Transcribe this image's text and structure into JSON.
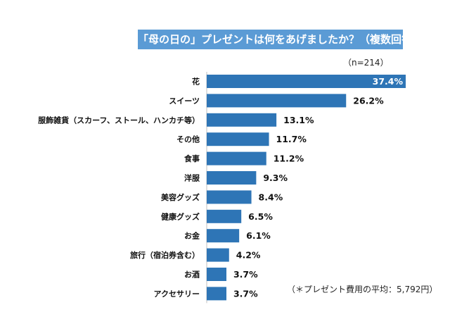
{
  "chart_data": {
    "type": "bar",
    "orientation": "horizontal",
    "title": "「母の日の」プレゼントは何をあげましたか？（複数回答)",
    "sample_size": "（n=214）",
    "unit": "%",
    "categories": [
      "花",
      "スイーツ",
      "服飾雑貨（スカーフ、ストール、ハンカチ等）",
      "その他",
      "食事",
      "洋服",
      "美容グッズ",
      "健康グッズ",
      "お金",
      "旅行（宿泊券含む）",
      "お酒",
      "アクセサリー"
    ],
    "values": [
      37.4,
      26.2,
      13.1,
      11.7,
      11.2,
      9.3,
      8.4,
      6.5,
      6.1,
      4.2,
      3.7,
      3.7
    ],
    "value_labels": [
      "37.4%",
      "26.2%",
      "13.1%",
      "11.7%",
      "11.2%",
      "9.3%",
      "8.4%",
      "6.5%",
      "6.1%",
      "4.2%",
      "3.7%",
      "3.7%"
    ],
    "xlim": [
      0,
      37.4
    ],
    "bar_color": "#2e75b6",
    "footnote": "（＊プレゼント費用の平均：5,792円）"
  }
}
